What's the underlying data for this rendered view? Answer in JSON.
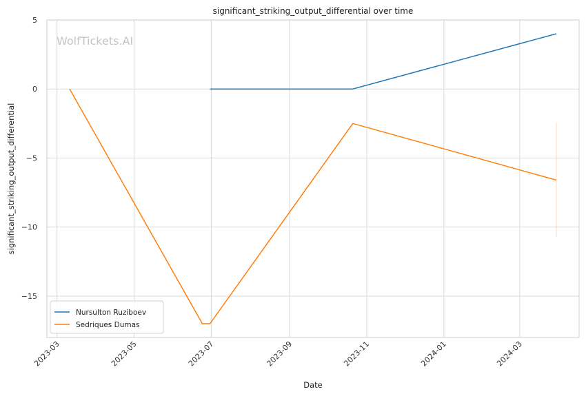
{
  "chart_data": {
    "type": "line",
    "title": "significant_striking_output_differential over time",
    "xlabel": "Date",
    "ylabel": "significant_striking_output_differential",
    "watermark": "WolfTickets.AI",
    "x_axis": {
      "type": "date",
      "range": [
        "2023-02-21",
        "2024-04-17"
      ],
      "ticks": [
        "2023-03",
        "2023-05",
        "2023-07",
        "2023-09",
        "2023-11",
        "2024-01",
        "2024-03"
      ],
      "tick_values": [
        "2023-03-01",
        "2023-05-01",
        "2023-07-01",
        "2023-09-01",
        "2023-11-01",
        "2024-01-01",
        "2024-03-01"
      ]
    },
    "y_axis": {
      "range": [
        -18,
        5
      ],
      "ticks": [
        5,
        0,
        -5,
        -10,
        -15
      ],
      "tick_labels": [
        "5",
        "0",
        "−5",
        "−10",
        "−15"
      ]
    },
    "grid": true,
    "legend_position": "lower-left",
    "series": [
      {
        "name": "Nursulton Ruziboev",
        "color": "#1f77b4",
        "points": [
          {
            "x": "2023-06-30",
            "y": 0
          },
          {
            "x": "2023-10-21",
            "y": 0
          },
          {
            "x": "2024-03-30",
            "y": 4
          }
        ]
      },
      {
        "name": "Sedriques Dumas",
        "color": "#ff7f0e",
        "points": [
          {
            "x": "2023-03-11",
            "y": 0
          },
          {
            "x": "2023-06-24",
            "y": -17
          },
          {
            "x": "2023-06-30",
            "y": -17
          },
          {
            "x": "2023-10-21",
            "y": -2.5
          },
          {
            "x": "2024-03-30",
            "y": -6.6
          }
        ],
        "error_band": {
          "x": "2024-03-30",
          "low": -10.7,
          "high": -2.4
        }
      }
    ]
  }
}
